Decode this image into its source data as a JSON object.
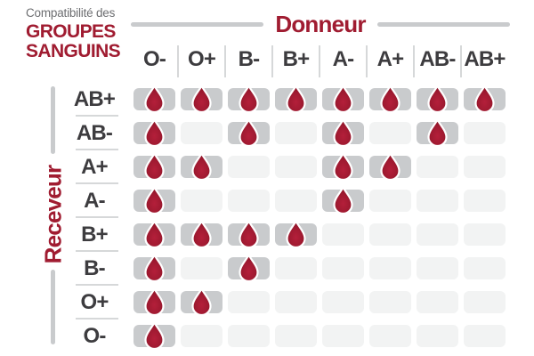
{
  "title": {
    "pre": "Compatibilité des",
    "line1": "GROUPES",
    "line2": "SANGUINS"
  },
  "axes": {
    "donor_label": "Donneur",
    "receiver_label": "Receveur"
  },
  "chart_data": {
    "type": "heatmap",
    "title": "Compatibilité des GROUPES SANGUINS",
    "columns_axis_label": "Donneur",
    "rows_axis_label": "Receveur",
    "columns": [
      "O-",
      "O+",
      "B-",
      "B+",
      "A-",
      "A+",
      "AB-",
      "AB+"
    ],
    "rows": [
      "AB+",
      "AB-",
      "A+",
      "A-",
      "B+",
      "B-",
      "O+",
      "O-"
    ],
    "cell_marker": "blood-drop-icon",
    "marker_meaning": "compatible",
    "matrix": [
      [
        1,
        1,
        1,
        1,
        1,
        1,
        1,
        1
      ],
      [
        1,
        0,
        1,
        0,
        1,
        0,
        1,
        0
      ],
      [
        1,
        1,
        0,
        0,
        1,
        1,
        0,
        0
      ],
      [
        1,
        0,
        0,
        0,
        1,
        0,
        0,
        0
      ],
      [
        1,
        1,
        1,
        1,
        0,
        0,
        0,
        0
      ],
      [
        1,
        0,
        1,
        0,
        0,
        0,
        0,
        0
      ],
      [
        1,
        1,
        0,
        0,
        0,
        0,
        0,
        0
      ],
      [
        1,
        0,
        0,
        0,
        0,
        0,
        0,
        0
      ]
    ],
    "legend_position": "none",
    "grid": "rounded cells; gray = compatible (with drop), pale = incompatible"
  },
  "colors": {
    "accent_red": "#a01c31",
    "drop_red_center": "#b41f3a",
    "drop_red_dark": "#851222",
    "cell_compatible_gray": "#c9cbcd",
    "cell_incompatible_gray": "#f2f3f3",
    "bracket_line_gray": "#c9cbcd",
    "separator_gray": "#d6d8d9",
    "label_dark": "#3d3c3f",
    "subtitle_gray": "#6d6e71",
    "background": "#ffffff"
  }
}
